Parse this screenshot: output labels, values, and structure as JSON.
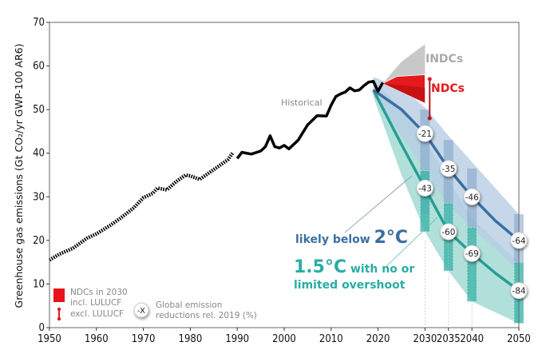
{
  "chart_data": {
    "type": "line",
    "ylabel": "Greenhouse gas emissions (Gt CO₂/yr GWP-100 AR6)",
    "xlim": [
      1950,
      2050
    ],
    "ylim": [
      0,
      70
    ],
    "x_ticks": [
      1950,
      1960,
      1970,
      1980,
      1990,
      2000,
      2010,
      2020,
      2030,
      2035,
      2040,
      2050
    ],
    "y_ticks": [
      0,
      10,
      20,
      30,
      40,
      50,
      60,
      70
    ],
    "grid": false,
    "colors": {
      "historical": "#000000",
      "below2": "#3a6fa0",
      "below2_band": "#b7cde3",
      "c15": "#2a9d94",
      "c15_band": "#a9ddd6",
      "ndc": "#e41a1c",
      "indc": "#c8c8c8"
    },
    "historical": {
      "label": "Historical",
      "x": [
        1950,
        1952,
        1955,
        1958,
        1960,
        1963,
        1965,
        1968,
        1970,
        1972,
        1973,
        1975,
        1977,
        1979,
        1980,
        1982,
        1984,
        1986,
        1988,
        1989,
        1990,
        1991,
        1993,
        1995,
        1996,
        1997,
        1998,
        1999,
        2000,
        2001,
        2003,
        2005,
        2007,
        2009,
        2010,
        2011,
        2012,
        2013,
        2014,
        2015,
        2016,
        2017,
        2018,
        2019,
        2020,
        2021
      ],
      "y": [
        15.5,
        16.8,
        18.2,
        20.5,
        21.5,
        23.5,
        25,
        27.5,
        29.8,
        30.8,
        32,
        31.6,
        33.5,
        35,
        34.8,
        34,
        35.5,
        37,
        38.5,
        40,
        38.8,
        40.2,
        39.8,
        40.5,
        41.5,
        44,
        41.5,
        41.2,
        41.8,
        41,
        43,
        46.5,
        48.6,
        48.5,
        51,
        53,
        53.6,
        54,
        55,
        54.3,
        54.5,
        55.5,
        56.3,
        56.5,
        54.2,
        56.2
      ]
    },
    "series": [
      {
        "name": "likely below 2°C",
        "x": [
          2019,
          2025,
          2030,
          2035,
          2040,
          2045,
          2050
        ],
        "median": [
          54.5,
          50,
          44.5,
          36.5,
          30,
          24.5,
          20
        ],
        "band_upper": [
          57.5,
          55,
          50.5,
          44,
          38,
          32,
          26
        ],
        "band_lower": [
          53.5,
          44,
          36,
          28,
          23,
          18,
          13
        ],
        "boxes": [
          {
            "x": 2030,
            "low": 26,
            "high": 50
          },
          {
            "x": 2035,
            "low": 28,
            "high": 43
          },
          {
            "x": 2040,
            "low": 23,
            "high": 36.5
          },
          {
            "x": 2050,
            "low": 15,
            "high": 26
          }
        ],
        "reduction_labels": [
          {
            "x": 2030,
            "value": "-21"
          },
          {
            "x": 2035,
            "value": "-35"
          },
          {
            "x": 2040,
            "value": "-46"
          },
          {
            "x": 2050,
            "value": "-64"
          }
        ]
      },
      {
        "name": "1.5°C with no or limited overshoot",
        "x": [
          2019,
          2025,
          2030,
          2035,
          2040,
          2045,
          2050
        ],
        "median": [
          54.5,
          42,
          32,
          22,
          17,
          12.5,
          8.5
        ],
        "band_upper": [
          57,
          50,
          43,
          34,
          25,
          20,
          15
        ],
        "band_lower": [
          53,
          35,
          22,
          13,
          6,
          3.5,
          1
        ],
        "boxes": [
          {
            "x": 2030,
            "low": 22,
            "high": 36
          },
          {
            "x": 2035,
            "low": 13,
            "high": 28.5
          },
          {
            "x": 2040,
            "low": 6,
            "high": 23
          },
          {
            "x": 2050,
            "low": 1,
            "high": 15
          }
        ],
        "reduction_labels": [
          {
            "x": 2030,
            "value": "-43"
          },
          {
            "x": 2035,
            "value": "-60"
          },
          {
            "x": 2040,
            "value": "-69"
          },
          {
            "x": 2050,
            "value": "-84"
          }
        ]
      }
    ],
    "indcs": {
      "label": "INDCs",
      "start": [
        2021,
        56
      ],
      "x_end": 2030,
      "range_2030": [
        56,
        65
      ]
    },
    "ndcs": {
      "label": "NDCs",
      "start": [
        2021,
        56
      ],
      "x_end": 2030,
      "range_2030": [
        51.5,
        58
      ],
      "excl_lulucf_2030": [
        48,
        57
      ]
    },
    "annotations": {
      "below2_label": "likely below",
      "below2_temp": "2°C",
      "c15_temp": "1.5°C",
      "c15_label1": "with no or",
      "c15_label2": "limited overshoot"
    },
    "legend": {
      "ndc_title": "NDCs in 2030",
      "ndc_incl": "incl. LULUCF",
      "ndc_excl": "excl. LULUCF",
      "marker": "-X",
      "marker_text1": "Global emission",
      "marker_text2": "reductions rel. 2019 (%)"
    }
  }
}
